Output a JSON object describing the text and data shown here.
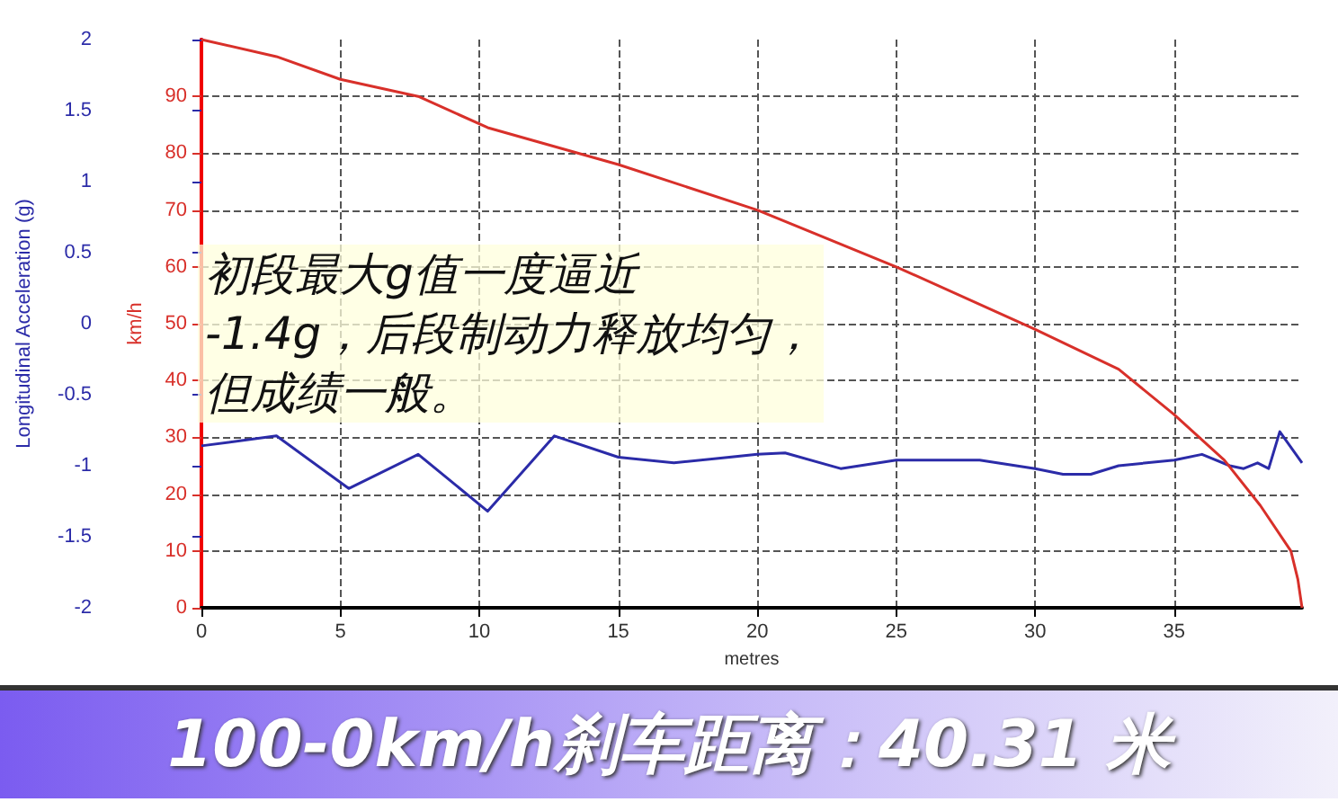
{
  "chart_data": {
    "type": "line",
    "title": "100-0km/h刹车距离：40.31 米",
    "xlabel": "metres",
    "ylabel": "Longitudinal Acceleration (g)",
    "y2label": "km/h",
    "annotations": [
      "初段最大g值一度逼近",
      "-1.4g，后段制动力释放均匀，",
      "但成绩一般。"
    ],
    "xlim": [
      0,
      39.6
    ],
    "xticks": [
      0,
      5,
      10,
      15,
      20,
      25,
      30,
      35
    ],
    "ylim": [
      -2,
      2
    ],
    "yticks": [
      -2,
      -1.5,
      -1,
      -0.5,
      0,
      0.5,
      1,
      1.5,
      2
    ],
    "y2lim": [
      0,
      100
    ],
    "y2ticks": [
      0,
      10,
      20,
      30,
      40,
      50,
      60,
      70,
      80,
      90
    ],
    "grid": true,
    "marker": "none",
    "line_style": "solid",
    "series": [
      {
        "color": "#2b2ba8",
        "axis": "y",
        "x": [
          0,
          2.7,
          5.3,
          7.8,
          10.3,
          12.7,
          15,
          17,
          20,
          21,
          23,
          25,
          28,
          30,
          31,
          32,
          33,
          35,
          36,
          37,
          37.5,
          38,
          38.4,
          38.8,
          39.6
        ],
        "values": [
          -0.86,
          -0.79,
          -1.16,
          -0.92,
          -1.32,
          -0.79,
          -0.94,
          -0.98,
          -0.92,
          -0.91,
          -1.02,
          -0.96,
          -0.96,
          -1.02,
          -1.06,
          -1.06,
          -1.0,
          -0.96,
          -0.92,
          -1.0,
          -1.02,
          -0.98,
          -1.02,
          -0.76,
          -0.98
        ]
      },
      {
        "color": "#d8302a",
        "axis": "y2",
        "x": [
          0,
          2.7,
          5,
          7.8,
          10.3,
          15,
          20,
          25,
          30,
          33,
          35,
          36.8,
          38.1,
          39.2,
          39.45,
          39.6
        ],
        "values": [
          100,
          97,
          93,
          90,
          84.5,
          78,
          70,
          60,
          49,
          42,
          34,
          26,
          18,
          10,
          5,
          0
        ]
      }
    ]
  }
}
